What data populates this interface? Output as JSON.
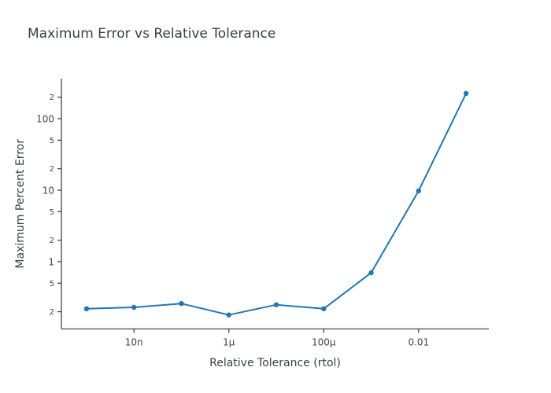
{
  "title": "Maximum Error vs Relative Tolerance",
  "colors": {
    "series_blue": "#1f77b4",
    "axis_line": "#444444",
    "tick_text": "#444444",
    "title_text": "#3b3e44",
    "background": "#ffffff"
  },
  "chart_data": {
    "type": "line",
    "title": "Maximum Error vs Relative Tolerance",
    "xlabel": "Relative Tolerance (rtol)",
    "ylabel": "Maximum Percent Error",
    "x_scale": "log",
    "y_scale": "log",
    "grid": false,
    "legend": false,
    "series": [
      {
        "name": "Maximum Percent Error",
        "color": "#1f77b4",
        "marker": "circle",
        "x": [
          1e-09,
          1e-08,
          1e-07,
          1e-06,
          1e-05,
          0.0001,
          0.001,
          0.01,
          0.1
        ],
        "y": [
          0.22,
          0.23,
          0.26,
          0.18,
          0.25,
          0.22,
          0.7,
          9.8,
          225
        ]
      }
    ],
    "x_ticks": [
      {
        "value": 1e-08,
        "label": "10n"
      },
      {
        "value": 1e-06,
        "label": "1µ"
      },
      {
        "value": 0.0001,
        "label": "100µ"
      },
      {
        "value": 0.01,
        "label": "0.01"
      }
    ],
    "y_ticks": [
      {
        "value": 200,
        "label": "2",
        "minor": true
      },
      {
        "value": 100,
        "label": "100",
        "minor": false
      },
      {
        "value": 50,
        "label": "5",
        "minor": true
      },
      {
        "value": 20,
        "label": "2",
        "minor": true
      },
      {
        "value": 10,
        "label": "10",
        "minor": false
      },
      {
        "value": 5,
        "label": "5",
        "minor": true
      },
      {
        "value": 2,
        "label": "2",
        "minor": true
      },
      {
        "value": 1,
        "label": "1",
        "minor": false
      },
      {
        "value": 0.5,
        "label": "5",
        "minor": true
      },
      {
        "value": 0.2,
        "label": "2",
        "minor": true
      }
    ],
    "xlim_log10": [
      -9.53,
      -0.52
    ],
    "ylim_log10": [
      -0.94,
      2.56
    ]
  }
}
